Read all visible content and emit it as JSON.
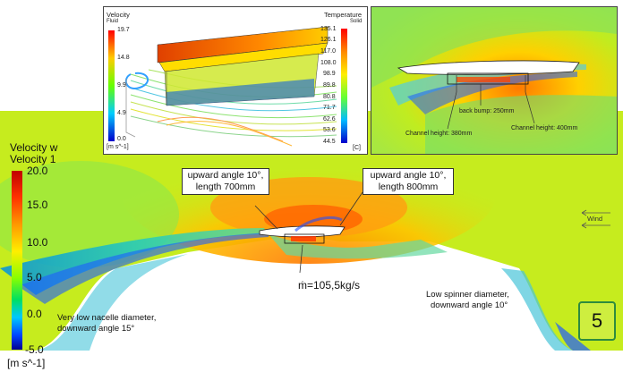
{
  "main_legend": {
    "title_line1": "Velocity w",
    "title_line2": "Velocity 1",
    "ticks": [
      "20.0",
      "15.0",
      "10.0",
      "5.0",
      "0.0",
      "-5.0"
    ],
    "unit": "[m s^-1]"
  },
  "annotations": {
    "front_angle": [
      "upward angle 10°,",
      "length 700mm"
    ],
    "rear_angle": [
      "upward angle 10°,",
      "length 800mm"
    ],
    "mass_flow": "ṁ=105,5kg/s",
    "low_nacelle": [
      "Very low nacelle diameter,",
      "downward angle 15°"
    ],
    "low_spinner": [
      "Low spinner diameter,",
      "downward angle 10°"
    ],
    "wind": "Wind",
    "figure_number": "5"
  },
  "inset_left": {
    "velocity_title": "Velocity",
    "velocity_sub": "Fluid",
    "velocity_ticks": [
      "19.7",
      "14.8",
      "9.9",
      "4.9",
      "0.0"
    ],
    "velocity_unit": "[m s^-1]",
    "temp_title": "Temperature",
    "temp_sub": "Solid",
    "temp_ticks": [
      "135.1",
      "126.1",
      "117.0",
      "108.0",
      "98.9",
      "89.8",
      "80.8",
      "71.7",
      "62.6",
      "53.6",
      "44.5"
    ],
    "temp_unit": "[C]"
  },
  "inset_right": {
    "bump_label": "back bump: 250mm",
    "channel_left": "Channel height: 380mm",
    "channel_right": "Channel height: 400mm"
  },
  "colors": {
    "ambient": "#c6ec1e",
    "shadow": "#34c4c8",
    "highspeed": "#ff9e10",
    "wake": "#1e5cff",
    "accent_box": "#2e8b3e"
  }
}
